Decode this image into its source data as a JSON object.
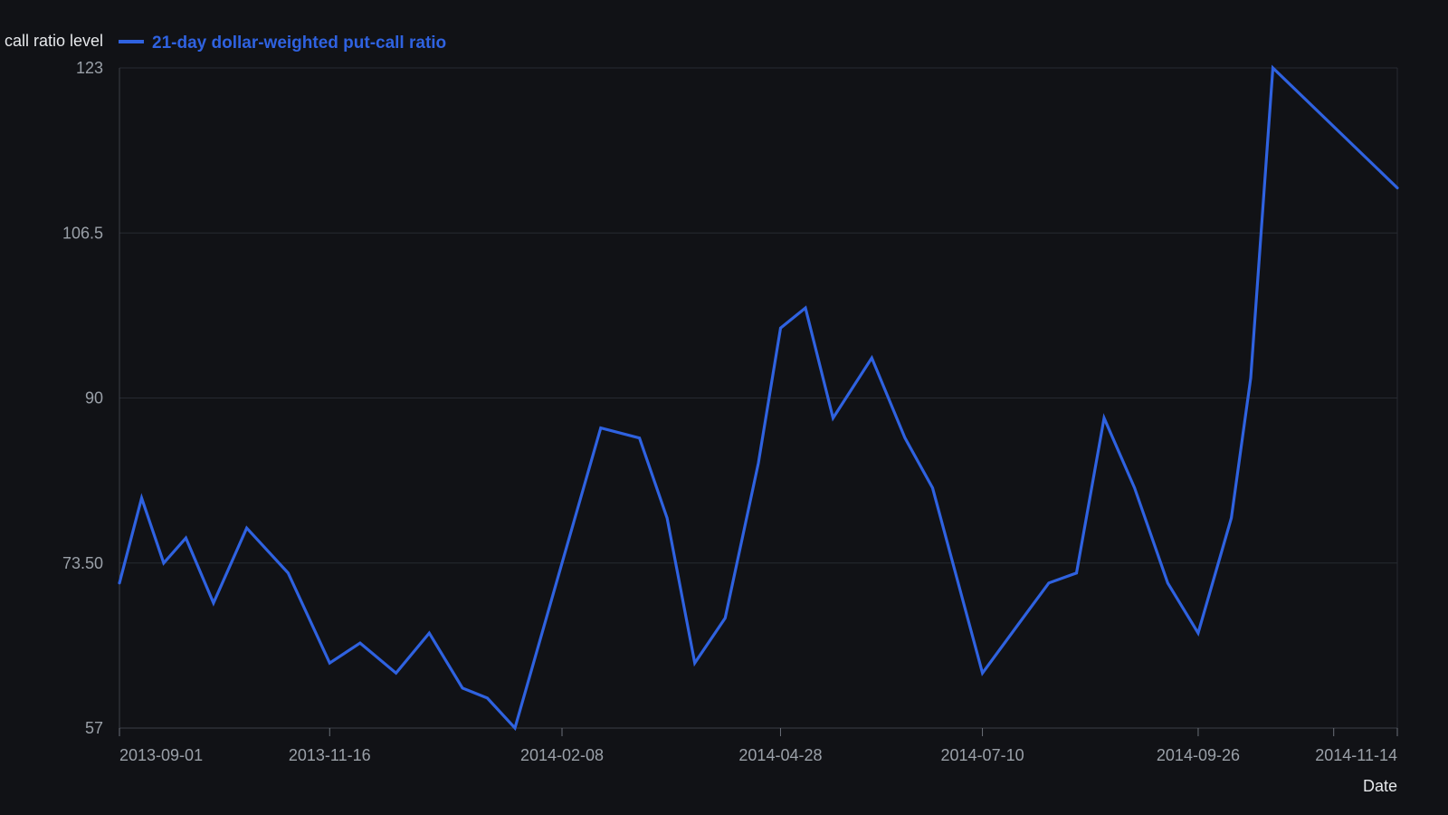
{
  "chart_data": {
    "type": "line",
    "title": "",
    "ylabel": "call ratio level",
    "xlabel": "Date",
    "ylim": [
      57,
      123
    ],
    "yticks": [
      57,
      73.5,
      90,
      106.5,
      123
    ],
    "ytick_labels": [
      "57",
      "73.50",
      "90",
      "106.5",
      "123"
    ],
    "xlim": [
      "2013-09-01",
      "2014-12-07"
    ],
    "xticks": [
      "2013-09-01",
      "2013-11-16",
      "2014-02-08",
      "2014-04-28",
      "2014-07-10",
      "2014-09-26",
      "2014-11-14"
    ],
    "grid": true,
    "legend_position": "top-left",
    "series": [
      {
        "name": "21-day dollar-weighted put-call ratio",
        "color": "#2f62e0",
        "x": [
          "2013-09-01",
          "2013-09-09",
          "2013-09-17",
          "2013-09-25",
          "2013-10-05",
          "2013-10-17",
          "2013-11-01",
          "2013-11-16",
          "2013-11-27",
          "2013-12-10",
          "2013-12-22",
          "2014-01-03",
          "2014-01-12",
          "2014-01-22",
          "2014-02-08",
          "2014-02-22",
          "2014-03-08",
          "2014-03-18",
          "2014-03-28",
          "2014-04-08",
          "2014-04-20",
          "2014-04-28",
          "2014-05-07",
          "2014-05-17",
          "2014-05-31",
          "2014-06-12",
          "2014-06-22",
          "2014-07-10",
          "2014-07-22",
          "2014-08-03",
          "2014-08-13",
          "2014-08-23",
          "2014-09-03",
          "2014-09-15",
          "2014-09-26",
          "2014-10-08",
          "2014-10-15",
          "2014-10-23",
          "2014-12-07"
        ],
        "values": [
          71.5,
          80,
          73.5,
          76,
          69.5,
          77,
          72.5,
          63.5,
          65.5,
          62.5,
          66.5,
          61,
          60,
          57,
          73.5,
          87,
          86,
          78,
          63.5,
          68,
          83.5,
          97,
          99,
          88,
          94,
          86,
          81,
          62.5,
          67,
          71.5,
          72.5,
          88,
          81,
          71.5,
          66.5,
          78,
          92,
          123,
          111
        ]
      }
    ]
  }
}
